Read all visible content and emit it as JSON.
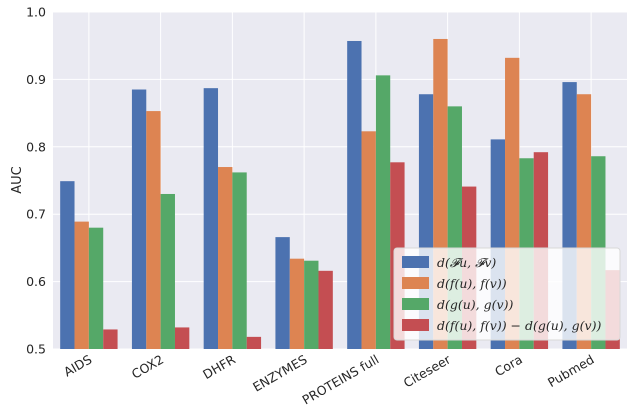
{
  "chart_data": {
    "type": "bar",
    "title": "",
    "xlabel": "",
    "ylabel": "AUC",
    "ylim": [
      0.5,
      1.0
    ],
    "yticks": [
      "0.5",
      "0.6",
      "0.7",
      "0.8",
      "0.9",
      "1.0"
    ],
    "grid": true,
    "legend_position": "lower-right",
    "categories": [
      "AIDS",
      "COX2",
      "DHFR",
      "ENZYMES",
      "PROTEINS full",
      "Citeseer",
      "Cora",
      "Pubmed"
    ],
    "series": [
      {
        "name": "d(𝓕u, 𝓕v)",
        "color": "#4c72b0",
        "values": [
          0.749,
          0.885,
          0.887,
          0.666,
          0.957,
          0.878,
          0.811,
          0.896
        ]
      },
      {
        "name": "d(f(u), f(v))",
        "color": "#dd8452",
        "values": [
          0.689,
          0.853,
          0.77,
          0.634,
          0.823,
          0.96,
          0.932,
          0.878
        ]
      },
      {
        "name": "d(g(u), g(v))",
        "color": "#55a868",
        "values": [
          0.68,
          0.73,
          0.762,
          0.631,
          0.906,
          0.86,
          0.783,
          0.786
        ]
      },
      {
        "name": "d(f(u), f(v)) − d(g(u), g(v))",
        "color": "#c44e52",
        "values": [
          0.529,
          0.532,
          0.518,
          0.616,
          0.777,
          0.741,
          0.792,
          0.617
        ]
      }
    ]
  }
}
